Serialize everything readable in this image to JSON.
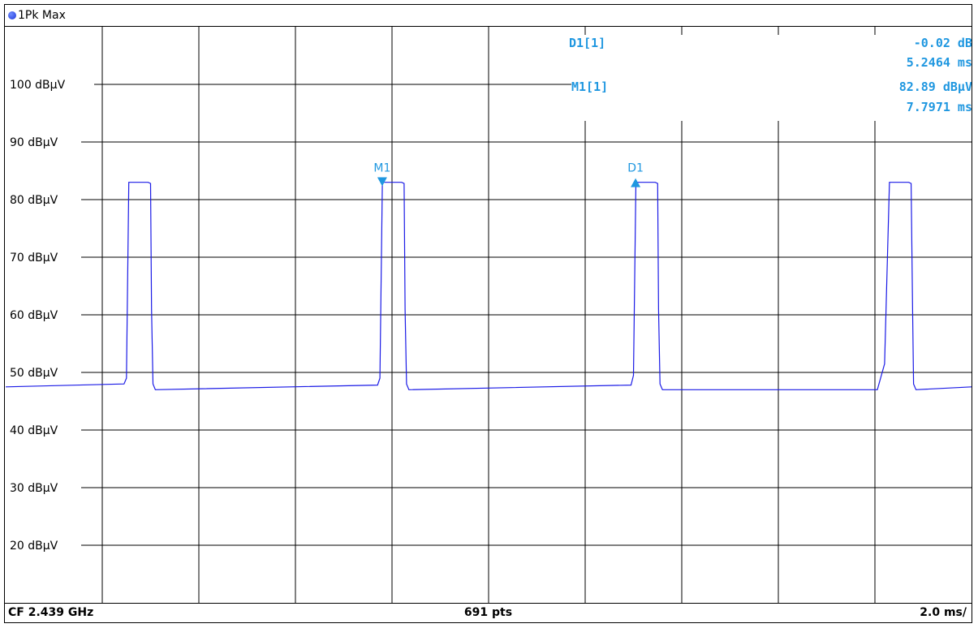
{
  "header": {
    "trace_label": "1Pk Max"
  },
  "footer": {
    "center_freq": "CF 2.439 GHz",
    "points": "691 pts",
    "sweep": "2.0 ms/"
  },
  "markers": {
    "d1": {
      "name": "D1[1]",
      "level": "-0.02 dB",
      "time": "5.2464 ms",
      "flag": "D1"
    },
    "m1": {
      "name": "M1[1]",
      "level": "82.89 dBµV",
      "time": "7.7971 ms",
      "flag": "M1"
    }
  },
  "colors": {
    "trace": "#1a1ae6",
    "marker": "#1f97e0",
    "grid": "#000000"
  },
  "chart_data": {
    "type": "line",
    "title": "",
    "xlabel": "",
    "ylabel": "",
    "x_unit": "ms",
    "xlim": [
      0,
      20
    ],
    "ylim": [
      10,
      110
    ],
    "y_tick_labels": [
      "100 dBµV",
      "90 dBµV",
      "80 dBµV",
      "70 dBµV",
      "60 dBµV",
      "50 dBµV",
      "40 dBµV",
      "30 dBµV",
      "20 dBµV"
    ],
    "y_tick_values": [
      100,
      90,
      80,
      70,
      60,
      50,
      40,
      30,
      20
    ],
    "grid": true,
    "noise_floor_dbuv": 47.5,
    "series": [
      {
        "name": "1Pk Max",
        "points": [
          [
            0.0,
            47.5
          ],
          [
            2.45,
            48.0
          ],
          [
            2.5,
            49.0
          ],
          [
            2.55,
            83.0
          ],
          [
            2.95,
            83.0
          ],
          [
            3.0,
            82.8
          ],
          [
            3.02,
            61.0
          ],
          [
            3.05,
            48.0
          ],
          [
            3.1,
            47.0
          ],
          [
            7.7,
            47.8
          ],
          [
            7.75,
            49.0
          ],
          [
            7.8,
            83.0
          ],
          [
            8.2,
            83.0
          ],
          [
            8.25,
            82.8
          ],
          [
            8.27,
            61.0
          ],
          [
            8.3,
            48.0
          ],
          [
            8.35,
            47.0
          ],
          [
            12.95,
            47.8
          ],
          [
            13.0,
            49.5
          ],
          [
            13.05,
            83.0
          ],
          [
            13.45,
            83.0
          ],
          [
            13.5,
            82.8
          ],
          [
            13.52,
            61.0
          ],
          [
            13.55,
            48.0
          ],
          [
            13.6,
            47.0
          ],
          [
            18.05,
            47.0
          ],
          [
            18.2,
            51.5
          ],
          [
            18.3,
            83.0
          ],
          [
            18.7,
            83.0
          ],
          [
            18.75,
            82.8
          ],
          [
            18.78,
            61.0
          ],
          [
            18.8,
            48.0
          ],
          [
            18.85,
            47.0
          ],
          [
            20.0,
            47.5
          ]
        ]
      }
    ],
    "markers": [
      {
        "name": "M1",
        "x": 7.7971,
        "y": 82.89,
        "type": "normal"
      },
      {
        "name": "D1",
        "x": 13.0435,
        "y": 82.87,
        "type": "delta",
        "delta_level_db": -0.02,
        "delta_time_ms": 5.2464
      }
    ]
  }
}
